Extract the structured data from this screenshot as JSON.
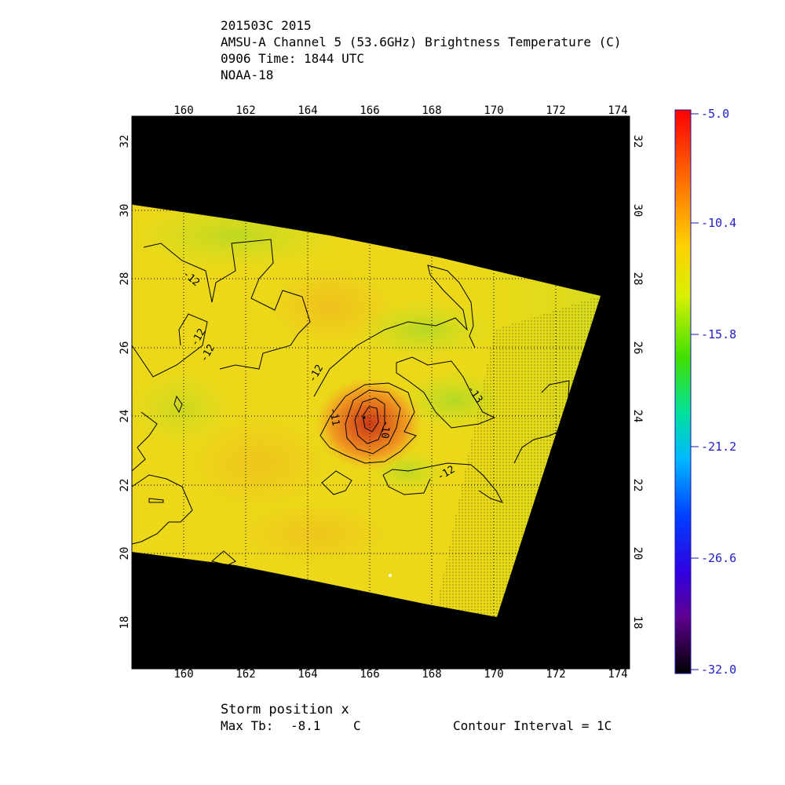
{
  "header": {
    "line1": "201503C 2015",
    "line2": "AMSU-A Channel 5 (53.6GHz) Brightness Temperature (C)",
    "line3": "0906 Time: 1844 UTC",
    "line4": "NOAA-18"
  },
  "map": {
    "lon_ticks": [
      "160",
      "162",
      "164",
      "166",
      "168",
      "170",
      "172",
      "174"
    ],
    "lat_ticks": [
      "18",
      "20",
      "22",
      "24",
      "26",
      "28",
      "30",
      "32"
    ],
    "lon_range": [
      158.0,
      174.0
    ],
    "lat_range": [
      16.7,
      32.8
    ],
    "contour_labels": [
      "-12",
      "-12",
      "-12",
      "-12",
      "-11",
      "-10",
      "-13",
      "-12"
    ],
    "colors": {
      "background": "#000000",
      "field_base": "#ecdc14",
      "warm_core": "#d94a1a",
      "cool_band": "#a8d828"
    }
  },
  "colorbar": {
    "min": -32.0,
    "max": -5.0,
    "tick_labels": [
      "-5.0",
      "-10.4",
      "-15.8",
      "-21.2",
      "-26.6",
      "-32.0"
    ],
    "colors": [
      "#ff0000",
      "#ff8c00",
      "#ffe000",
      "#a0e000",
      "#00d000",
      "#00e0e0",
      "#0070ff",
      "#2000e0",
      "#5a0090",
      "#000000"
    ]
  },
  "footer": {
    "storm_position": "Storm position x",
    "max_tb_label": "Max Tb:",
    "max_tb_value": "-8.1",
    "max_tb_unit": "C",
    "contour_interval": "Contour Interval = 1C"
  }
}
